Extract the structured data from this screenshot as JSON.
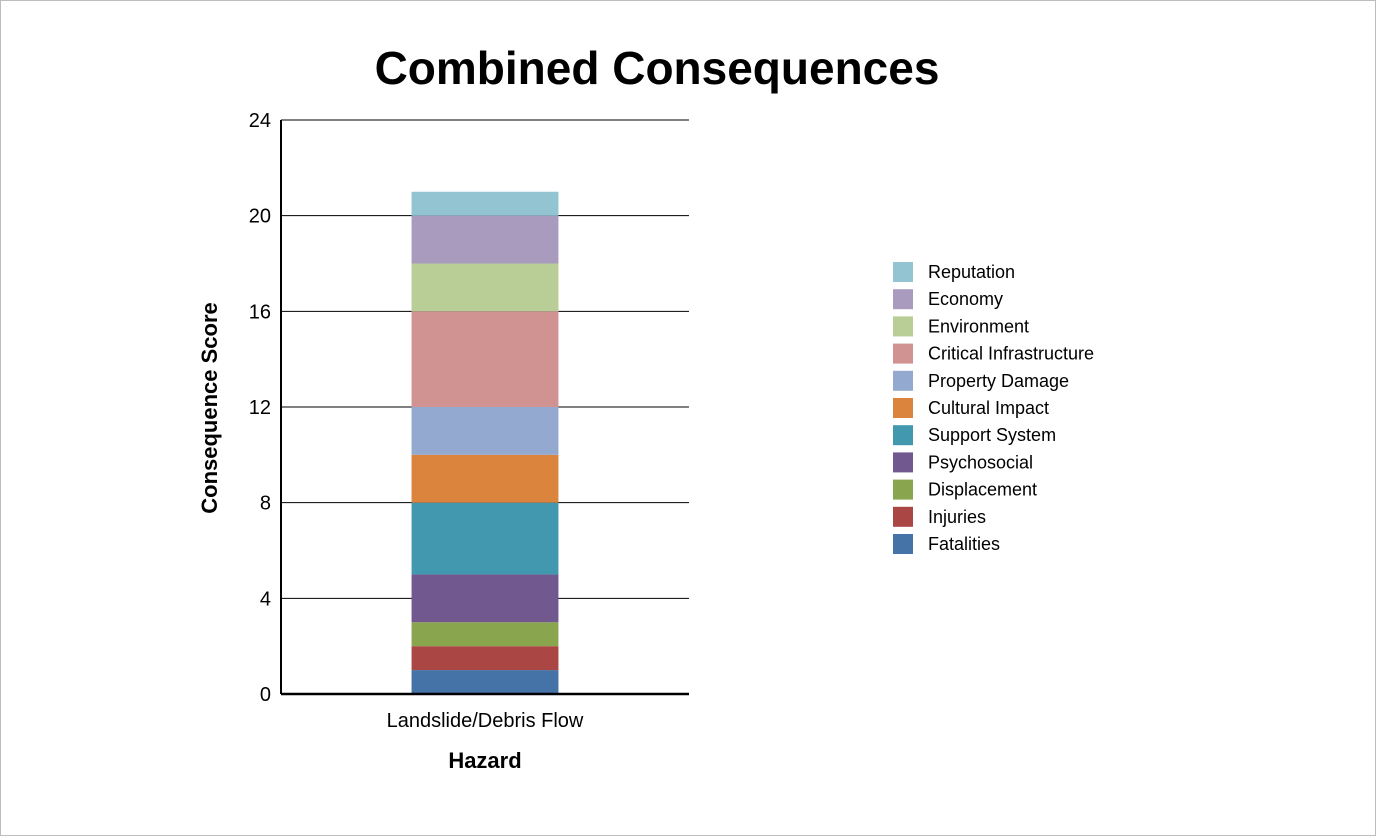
{
  "chart_data": {
    "type": "bar",
    "stacked": true,
    "title": "Combined Consequences",
    "xlabel": "Hazard",
    "ylabel": "Consequence Score",
    "categories": [
      "Landslide/Debris Flow"
    ],
    "ylim": [
      0,
      24
    ],
    "yticks": [
      "0",
      "4",
      "8",
      "12",
      "16",
      "20",
      "24"
    ],
    "grid": true,
    "legend_position": "right",
    "series": [
      {
        "name": "Fatalities",
        "values": [
          1
        ],
        "color": "#4572a7"
      },
      {
        "name": "Injuries",
        "values": [
          1
        ],
        "color": "#aa4643"
      },
      {
        "name": "Displacement",
        "values": [
          1
        ],
        "color": "#89a54e"
      },
      {
        "name": "Psychosocial",
        "values": [
          2
        ],
        "color": "#71588f"
      },
      {
        "name": "Support System",
        "values": [
          3
        ],
        "color": "#4198af"
      },
      {
        "name": "Cultural Impact",
        "values": [
          2
        ],
        "color": "#db843d"
      },
      {
        "name": "Property Damage",
        "values": [
          2
        ],
        "color": "#93a9cf"
      },
      {
        "name": "Critical Infrastructure",
        "values": [
          4
        ],
        "color": "#d19392"
      },
      {
        "name": "Environment",
        "values": [
          2
        ],
        "color": "#b9cd96"
      },
      {
        "name": "Economy",
        "values": [
          2
        ],
        "color": "#a99bbd"
      },
      {
        "name": "Reputation",
        "values": [
          1
        ],
        "color": "#92c5d1"
      }
    ]
  }
}
